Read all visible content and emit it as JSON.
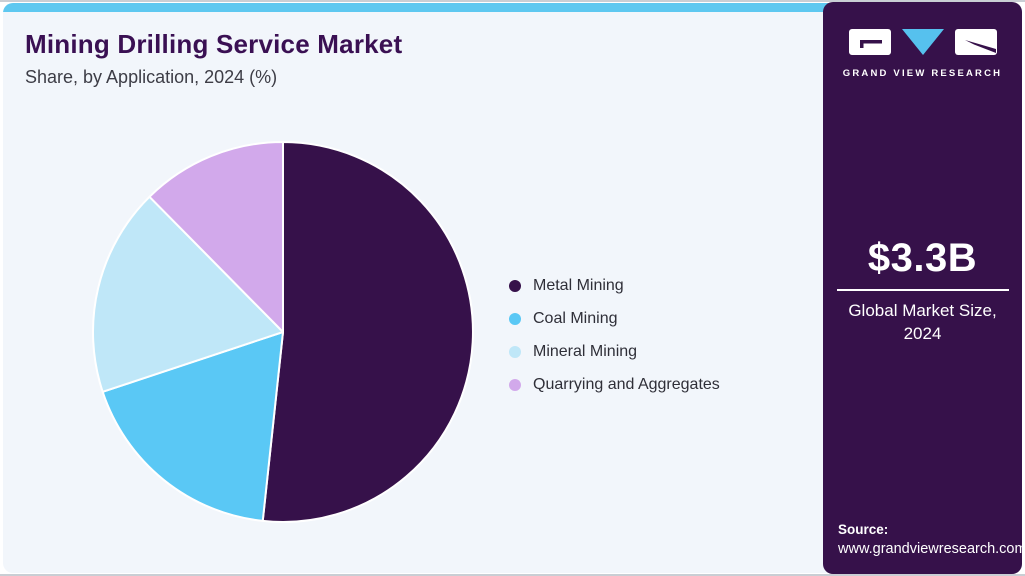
{
  "page": {
    "card_bg": "#f2f6fb",
    "accent_bar_color": "#5ec8f0",
    "edge_line_color": "#c9ced4"
  },
  "header": {
    "title": "Mining Drilling Service Market",
    "subtitle": "Share, by Application, 2024 (%)"
  },
  "chart_data": {
    "type": "pie",
    "title": "Mining Drilling Service Market Share, by Application, 2024 (%)",
    "categories": [
      "Metal Mining",
      "Coal Mining",
      "Mineral Mining",
      "Quarrying and Aggregates"
    ],
    "values": [
      51.7,
      18.2,
      17.7,
      12.4
    ],
    "unit": "%",
    "colors": [
      "#36114a",
      "#5ac8f5",
      "#bfe7f8",
      "#d2a9eb"
    ],
    "start_angle_deg": 0,
    "direction": "clockwise",
    "slice_border_color": "#ffffff",
    "legend_position": "right"
  },
  "sidebar": {
    "bg": "#36114a",
    "logo": {
      "brand": "GRAND VIEW RESEARCH",
      "triangle_color": "#56c1ee",
      "box_color": "#ffffff"
    },
    "market_size": {
      "value": "$3.3B",
      "label": "Global Market Size, 2024"
    },
    "source": {
      "label": "Source:",
      "url": "www.grandviewresearch.com"
    }
  }
}
